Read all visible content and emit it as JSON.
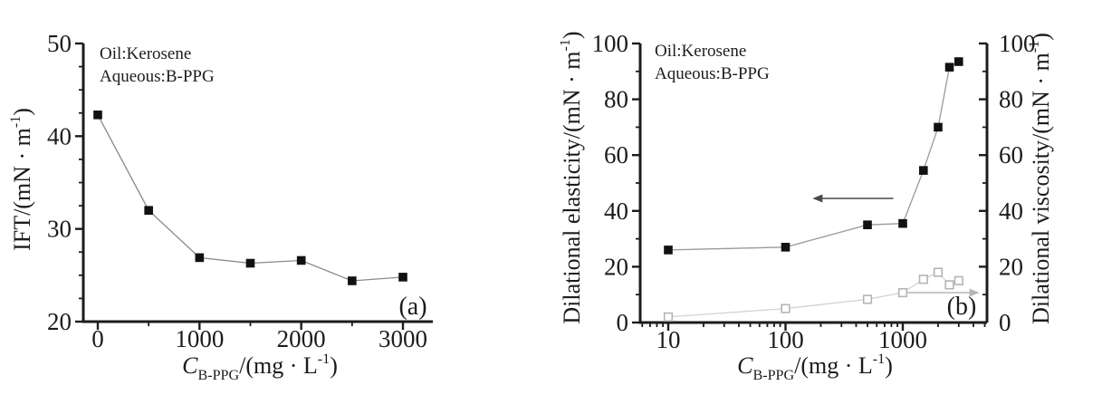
{
  "figure": {
    "background": "#ffffff",
    "description": "Two-panel line chart figure"
  },
  "colors": {
    "axis": "#1c1c1c",
    "text": "#1c1c1c",
    "ift_marker": "#111111",
    "ift_line": "#8a8a8a",
    "elasticity_marker": "#111111",
    "elasticity_line": "#9a9a9a",
    "viscosity_marker": "#b5b5b5",
    "viscosity_line": "#d2d2d2",
    "left_axis_arrow": "#4a4a4a",
    "right_axis_arrow": "#b5b5b5"
  },
  "chart_data": [
    {
      "panel": "a",
      "type": "line",
      "panel_label": "(a)",
      "annotation_lines": [
        "Oil:Kerosene",
        "Aqueous:B-PPG"
      ],
      "xscale": "linear",
      "xlim": [
        -140,
        3300
      ],
      "ylim": [
        20,
        50
      ],
      "xlabel_text": "C_B-PPG/(mg · L^-1)",
      "ylabel_text": "IFT/(mN · m^-1)",
      "xlabel_parts": [
        {
          "t": "C",
          "s": "italic"
        },
        {
          "t": "B-PPG",
          "s": "sub"
        },
        {
          "t": "/(mg · L",
          "s": "normal"
        },
        {
          "t": "-1",
          "s": "sup"
        },
        {
          "t": ")",
          "s": "normal"
        }
      ],
      "ylabel_parts": [
        {
          "t": "IFT/(mN · m",
          "s": "normal"
        },
        {
          "t": "-1",
          "s": "sup"
        },
        {
          "t": ")",
          "s": "normal"
        }
      ],
      "x_major_ticks": [
        0,
        1000,
        2000,
        3000
      ],
      "x_minor_ticks": [
        500,
        1500,
        2500
      ],
      "y_major_ticks": [
        20,
        30,
        40,
        50
      ],
      "y_minor_ticks": [
        22.5,
        25,
        27.5,
        32.5,
        35,
        37.5,
        42.5,
        45,
        47.5
      ],
      "x": [
        0,
        500,
        1000,
        1500,
        2000,
        2500,
        3000
      ],
      "series": [
        {
          "name": "IFT",
          "axis": "left",
          "marker": "filled-square",
          "marker_color": "#111111",
          "line_color": "#8a8a8a",
          "values": [
            42.3,
            32.0,
            26.9,
            26.3,
            26.6,
            24.4,
            24.8
          ]
        }
      ],
      "arrows": []
    },
    {
      "panel": "b",
      "type": "line",
      "panel_label": "(b)",
      "annotation_lines": [
        "Oil:Kerosene",
        "Aqueous:B-PPG"
      ],
      "xscale": "log",
      "xlim": [
        5.7,
        5200
      ],
      "ylim_left": [
        0,
        100
      ],
      "ylim_right": [
        0,
        100
      ],
      "xlabel_text": "C_B-PPG/(mg · L^-1)",
      "ylabel_left_text": "Dilational elasticity/(mN · m^-1)",
      "ylabel_right_text": "Dilational viscosity/(mN · m^-1)",
      "xlabel_parts": [
        {
          "t": "C",
          "s": "italic"
        },
        {
          "t": "B-PPG",
          "s": "sub"
        },
        {
          "t": "/(mg · L",
          "s": "normal"
        },
        {
          "t": "-1",
          "s": "sup"
        },
        {
          "t": ")",
          "s": "normal"
        }
      ],
      "ylabel_left_parts": [
        {
          "t": "Dilational elasticity/(mN · m",
          "s": "normal"
        },
        {
          "t": "-1",
          "s": "sup"
        },
        {
          "t": ")",
          "s": "normal"
        }
      ],
      "ylabel_right_parts": [
        {
          "t": "Dilational viscosity/(mN · m",
          "s": "normal"
        },
        {
          "t": "-1",
          "s": "sup"
        },
        {
          "t": ")",
          "s": "normal"
        }
      ],
      "x_major_ticks": [
        10,
        100,
        1000
      ],
      "x_minor_ticks": [
        6,
        7,
        8,
        9,
        20,
        30,
        40,
        50,
        60,
        70,
        80,
        90,
        200,
        300,
        400,
        500,
        600,
        700,
        800,
        900,
        2000,
        3000,
        4000,
        5000
      ],
      "y_major_ticks": [
        0,
        20,
        40,
        60,
        80,
        100
      ],
      "y_minor_ticks": [
        10,
        30,
        50,
        70,
        90
      ],
      "x": [
        10,
        100,
        500,
        1000,
        1500,
        2000,
        2500,
        3000
      ],
      "series": [
        {
          "name": "Dilational elasticity",
          "axis": "left",
          "marker": "filled-square",
          "marker_color": "#111111",
          "line_color": "#9a9a9a",
          "values": [
            26,
            27,
            35,
            35.5,
            54.5,
            70,
            91.5,
            93.5
          ]
        },
        {
          "name": "Dilational viscosity",
          "axis": "right",
          "marker": "open-square",
          "marker_color": "#b5b5b5",
          "line_color": "#d2d2d2",
          "values": [
            2,
            5,
            8.3,
            10.7,
            15.5,
            18,
            13.5,
            15
          ]
        }
      ],
      "arrows": [
        {
          "name": "points-to-left-axis",
          "dir": "left",
          "y": 44.5,
          "x_from": 830,
          "x_to": 170,
          "color": "#4a4a4a"
        },
        {
          "name": "points-to-right-axis",
          "dir": "right",
          "y": 10.7,
          "x_from": 1090,
          "x_to": 4500,
          "color": "#b5b5b5"
        }
      ]
    }
  ]
}
